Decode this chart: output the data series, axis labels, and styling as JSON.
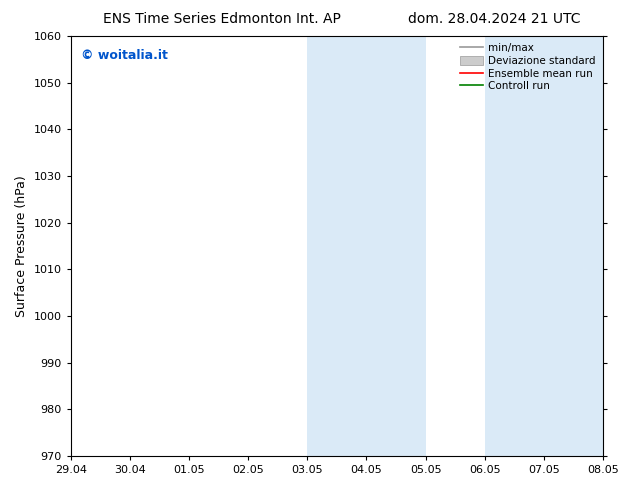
{
  "title_left": "ENS Time Series Edmonton Int. AP",
  "title_right": "dom. 28.04.2024 21 UTC",
  "ylabel": "Surface Pressure (hPa)",
  "ylim": [
    970,
    1060
  ],
  "yticks": [
    970,
    980,
    990,
    1000,
    1010,
    1020,
    1030,
    1040,
    1050,
    1060
  ],
  "xlim": [
    0,
    9
  ],
  "xtick_positions": [
    0,
    1,
    2,
    3,
    4,
    5,
    6,
    7,
    8,
    9
  ],
  "xtick_labels": [
    "29.04",
    "30.04",
    "01.05",
    "02.05",
    "03.05",
    "04.05",
    "05.05",
    "06.05",
    "07.05",
    "08.05"
  ],
  "shaded_regions": [
    {
      "x_start": 4.0,
      "x_end": 5.0
    },
    {
      "x_start": 5.0,
      "x_end": 6.0
    },
    {
      "x_start": 7.0,
      "x_end": 8.0
    },
    {
      "x_start": 8.0,
      "x_end": 9.0
    }
  ],
  "shaded_color": "#daeaf7",
  "watermark_text": "© woitalia.it",
  "watermark_color": "#0055cc",
  "background_color": "#ffffff",
  "title_fontsize": 10,
  "tick_fontsize": 8,
  "ylabel_fontsize": 9,
  "legend_fontsize": 7.5,
  "legend_items": [
    {
      "label": "min/max",
      "color": "#999999"
    },
    {
      "label": "Deviazione standard",
      "color": "#cccccc"
    },
    {
      "label": "Ensemble mean run",
      "color": "#ff0000"
    },
    {
      "label": "Controll run",
      "color": "#008000"
    }
  ]
}
